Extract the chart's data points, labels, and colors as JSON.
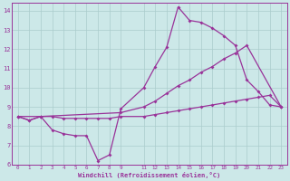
{
  "xlabel": "Windchill (Refroidissement éolien,°C)",
  "bg_color": "#cce8e8",
  "grid_color": "#aacccc",
  "line_color": "#993399",
  "xlim": [
    -0.5,
    23.5
  ],
  "ylim": [
    6,
    14.4
  ],
  "xticks": [
    0,
    1,
    2,
    3,
    4,
    5,
    6,
    7,
    8,
    9,
    11,
    12,
    13,
    14,
    15,
    16,
    17,
    18,
    19,
    20,
    21,
    22,
    23
  ],
  "yticks": [
    6,
    7,
    8,
    9,
    10,
    11,
    12,
    13,
    14
  ],
  "series1_x": [
    0,
    1,
    2,
    3,
    4,
    5,
    6,
    7,
    8,
    9,
    11,
    12,
    13,
    14,
    15,
    16,
    17,
    18,
    19,
    20,
    21,
    22,
    23
  ],
  "series1_y": [
    8.5,
    8.3,
    8.5,
    7.8,
    7.6,
    7.5,
    7.5,
    6.2,
    6.5,
    8.9,
    10.0,
    11.1,
    12.1,
    14.2,
    13.5,
    13.4,
    13.1,
    12.7,
    12.2,
    10.4,
    9.8,
    9.1,
    9.0
  ],
  "series2_x": [
    0,
    2,
    9,
    11,
    12,
    13,
    14,
    15,
    16,
    17,
    18,
    19,
    20,
    23
  ],
  "series2_y": [
    8.5,
    8.5,
    8.7,
    9.0,
    9.3,
    9.7,
    10.1,
    10.4,
    10.8,
    11.1,
    11.5,
    11.8,
    12.2,
    9.0
  ],
  "series3_x": [
    0,
    1,
    2,
    3,
    4,
    5,
    6,
    7,
    8,
    9,
    11,
    12,
    13,
    14,
    15,
    16,
    17,
    18,
    19,
    20,
    21,
    22,
    23
  ],
  "series3_y": [
    8.5,
    8.3,
    8.5,
    8.5,
    8.4,
    8.4,
    8.4,
    8.4,
    8.4,
    8.5,
    8.5,
    8.6,
    8.7,
    8.8,
    8.9,
    9.0,
    9.1,
    9.2,
    9.3,
    9.4,
    9.5,
    9.6,
    9.0
  ]
}
